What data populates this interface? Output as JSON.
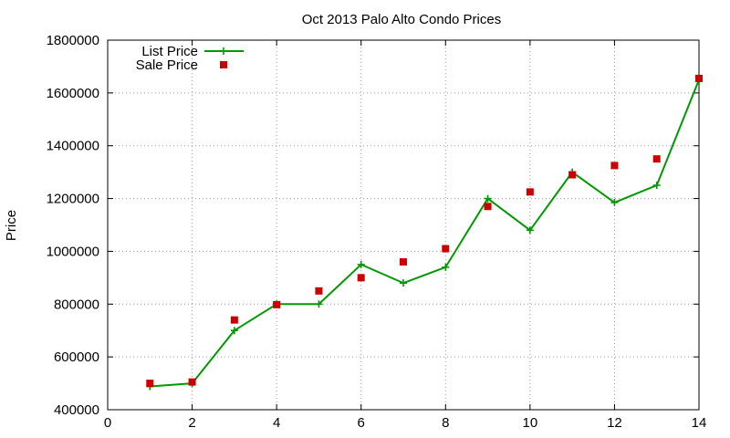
{
  "chart_data": {
    "type": "line",
    "title": "Oct 2013 Palo Alto Condo Prices",
    "xlabel": "",
    "ylabel": "Price",
    "xlim": [
      0,
      14
    ],
    "ylim": [
      400000,
      1800000
    ],
    "x_ticks": [
      0,
      2,
      4,
      6,
      8,
      10,
      12,
      14
    ],
    "y_ticks": [
      400000,
      600000,
      800000,
      1000000,
      1200000,
      1400000,
      1600000,
      1800000
    ],
    "x_tick_labels": [
      "0",
      "2",
      "4",
      "6",
      "8",
      "10",
      "12",
      "14"
    ],
    "y_tick_labels": [
      "400000",
      "600000",
      "800000",
      "1000000",
      "1200000",
      "1400000",
      "1600000",
      "1800000"
    ],
    "grid": true,
    "legend_position": "top-left",
    "series": [
      {
        "name": "List Price",
        "style": "line-plus",
        "color": "#009900",
        "x": [
          1,
          2,
          3,
          4,
          5,
          6,
          7,
          8,
          9,
          10,
          11,
          12,
          13,
          14
        ],
        "y": [
          488000,
          500000,
          700000,
          800000,
          800000,
          950000,
          880000,
          940000,
          1200000,
          1080000,
          1300000,
          1185000,
          1250000,
          1650000
        ]
      },
      {
        "name": "Sale Price",
        "style": "square-points",
        "color": "#cc0000",
        "x": [
          1,
          2,
          3,
          4,
          5,
          6,
          7,
          8,
          9,
          10,
          11,
          12,
          13,
          14
        ],
        "y": [
          500000,
          505000,
          740000,
          798000,
          850000,
          900000,
          960000,
          1010000,
          1170000,
          1225000,
          1290000,
          1325000,
          1350000,
          1655000
        ]
      }
    ]
  }
}
